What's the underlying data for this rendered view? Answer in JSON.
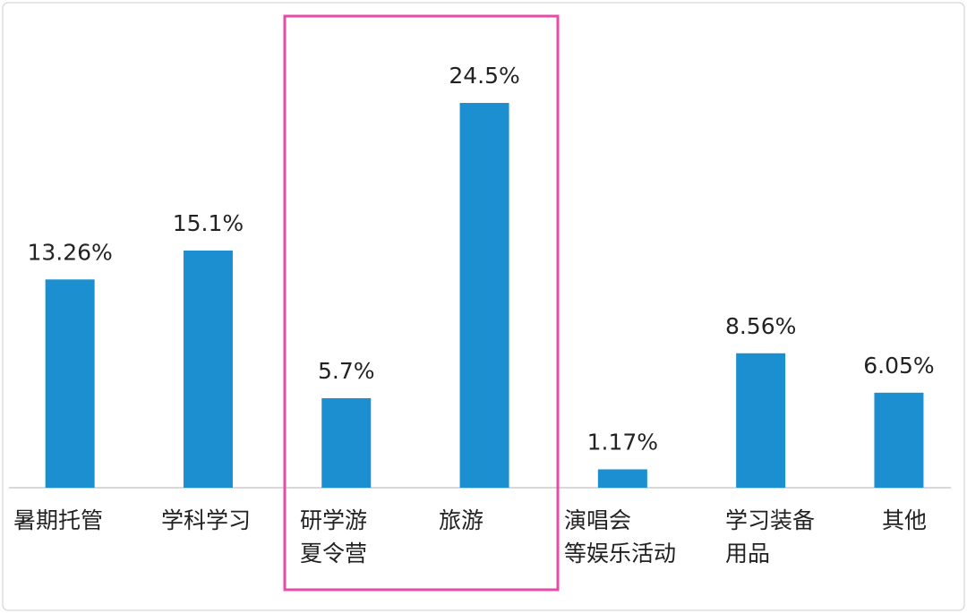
{
  "chart_data": {
    "type": "bar",
    "categories": [
      "暑期托管",
      "学科学习",
      "研学游\n夏令营",
      "旅游",
      "演唱会\n等娱乐活动",
      "学习装备\n用品",
      "其他"
    ],
    "values": [
      13.26,
      15.1,
      5.7,
      24.5,
      1.17,
      8.56,
      6.05
    ],
    "value_labels": [
      "13.26%",
      "15.1%",
      "5.7%",
      "24.5%",
      "1.17%",
      "8.56%",
      "6.05%"
    ],
    "color": "#1b8fd0"
  }
}
